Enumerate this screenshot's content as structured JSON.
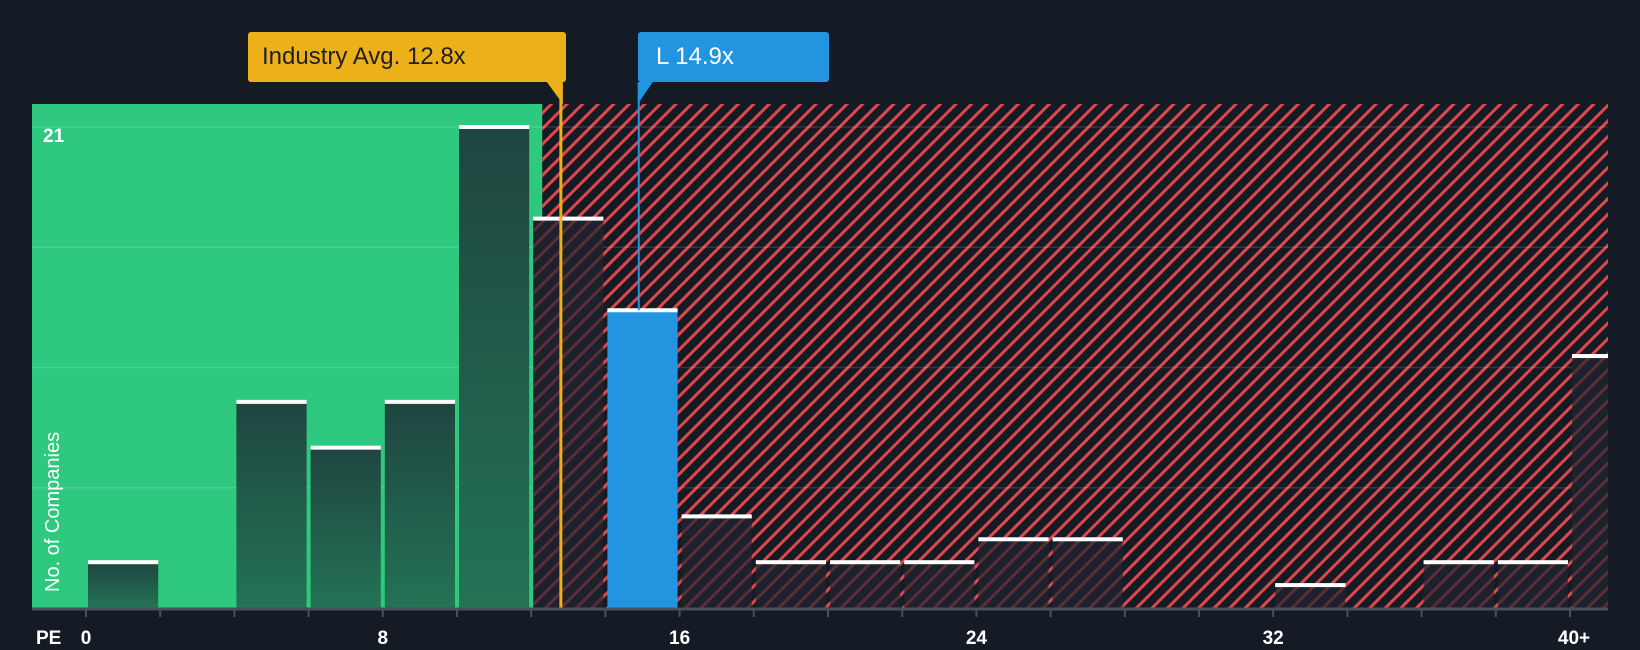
{
  "chart_data": {
    "type": "bar",
    "title": "",
    "xlabel": "PE",
    "ylabel": "No. of Companies",
    "x_tick_labels": [
      "0",
      "8",
      "16",
      "24",
      "32",
      "40+"
    ],
    "y_max_label": "21",
    "ylim": [
      0,
      21
    ],
    "bin_width": 2,
    "bins": [
      "0-2",
      "2-4",
      "4-6",
      "6-8",
      "8-10",
      "10-12",
      "12-14",
      "14-16",
      "16-18",
      "18-20",
      "20-22",
      "22-24",
      "24-26",
      "26-28",
      "28-30",
      "30-32",
      "32-34",
      "34-36",
      "36-38",
      "38-40",
      "40+"
    ],
    "bin_starts": [
      0,
      2,
      4,
      6,
      8,
      10,
      12,
      14,
      16,
      18,
      20,
      22,
      24,
      26,
      28,
      30,
      32,
      34,
      36,
      38,
      40
    ],
    "values": [
      2,
      0,
      9,
      7,
      9,
      21,
      17,
      13,
      4,
      2,
      2,
      2,
      3,
      3,
      0,
      0,
      1,
      0,
      2,
      2,
      11
    ],
    "highlight_bin_index": 7,
    "industry_avg": 12.8,
    "company_value": 14.9,
    "fair_region_end_pe": 12.3,
    "grid": true,
    "gridline_values": [
      5.25,
      10.5,
      15.75,
      21
    ]
  },
  "callouts": {
    "industry": "Industry Avg. 12.8x",
    "company": "L 14.9x"
  },
  "colors": {
    "background": "#151b24",
    "green_region": "#2ec97f",
    "red_hatch": "#e0474c",
    "bar_dark": "#1f4a3f",
    "bar_dark_red": "#1c212c",
    "company_bar": "#2394df",
    "industry_line": "#ecb119",
    "company_line": "#2394df",
    "bar_cap": "#ffffff",
    "axis": "#4b505a"
  }
}
